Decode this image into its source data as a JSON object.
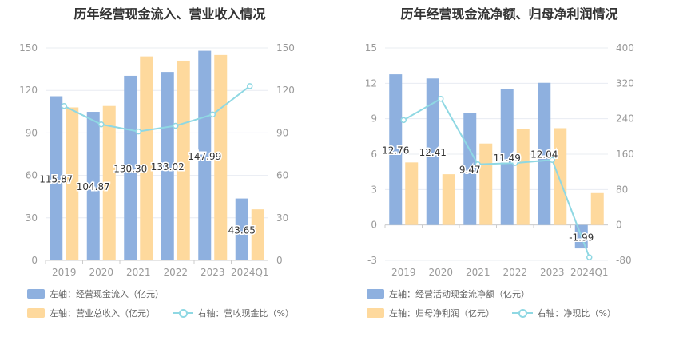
{
  "left": {
    "title": "历年经营现金流入、营业收入情况",
    "legend": {
      "bar1": "左轴：经营现金流入（亿元）",
      "bar2": "左轴：营业总收入（亿元）",
      "line": "右轴：营收现金比（%）"
    }
  },
  "right": {
    "title": "历年经营现金流净额、归母净利润情况",
    "legend": {
      "bar1": "左轴：经营活动现金流净额（亿元）",
      "bar2": "左轴：归母净利润（亿元）",
      "line": "右轴：净现比（%）"
    }
  },
  "colors": {
    "bar1": "#8eb0df",
    "bar2": "#fed99d",
    "line": "#8fd8e3",
    "grid": "#e8ecf2",
    "axis": "#999999"
  },
  "chart_data": [
    {
      "type": "bar",
      "title": "历年经营现金流入、营业收入情况",
      "categories": [
        "2019",
        "2020",
        "2021",
        "2022",
        "2023",
        "2024Q1"
      ],
      "y_left": {
        "ticks": [
          0,
          30,
          60,
          90,
          120,
          150
        ],
        "lim": [
          0,
          150
        ]
      },
      "y_right": {
        "ticks": [
          0,
          30,
          60,
          90,
          120,
          150
        ],
        "lim": [
          0,
          150
        ]
      },
      "series": [
        {
          "name": "左轴：经营现金流入（亿元）",
          "type": "bar",
          "axis": "left",
          "values": [
            115.87,
            104.87,
            130.3,
            133.02,
            147.99,
            43.65
          ],
          "labels": [
            "115.87",
            "104.87",
            "130.30",
            "133.02",
            "147.99",
            "43.65"
          ]
        },
        {
          "name": "左轴：营业总收入（亿元）",
          "type": "bar",
          "axis": "left",
          "values": [
            108,
            109,
            144,
            141,
            145,
            36
          ]
        },
        {
          "name": "右轴：营收现金比（%）",
          "type": "line",
          "axis": "right",
          "values": [
            109,
            96,
            91,
            95,
            103,
            123
          ]
        }
      ]
    },
    {
      "type": "bar",
      "title": "历年经营现金流净额、归母净利润情况",
      "categories": [
        "2019",
        "2020",
        "2021",
        "2022",
        "2023",
        "2024Q1"
      ],
      "y_left": {
        "ticks": [
          -3,
          0,
          3,
          6,
          9,
          12,
          15
        ],
        "lim": [
          -3,
          15
        ]
      },
      "y_right": {
        "ticks": [
          -80,
          0,
          80,
          160,
          240,
          320,
          400
        ],
        "lim": [
          -80,
          400
        ]
      },
      "series": [
        {
          "name": "左轴：经营活动现金流净额（亿元）",
          "type": "bar",
          "axis": "left",
          "values": [
            12.76,
            12.41,
            9.47,
            11.49,
            12.04,
            -1.99
          ],
          "labels": [
            "12.76",
            "12.41",
            "9.47",
            "11.49",
            "12.04",
            "-1.99"
          ]
        },
        {
          "name": "左轴：归母净利润（亿元）",
          "type": "bar",
          "axis": "left",
          "values": [
            5.3,
            4.3,
            6.9,
            8.1,
            8.2,
            2.7
          ]
        },
        {
          "name": "右轴：净现比（%）",
          "type": "line",
          "axis": "right",
          "values": [
            237,
            285,
            137,
            140,
            147,
            -73
          ]
        }
      ]
    }
  ]
}
